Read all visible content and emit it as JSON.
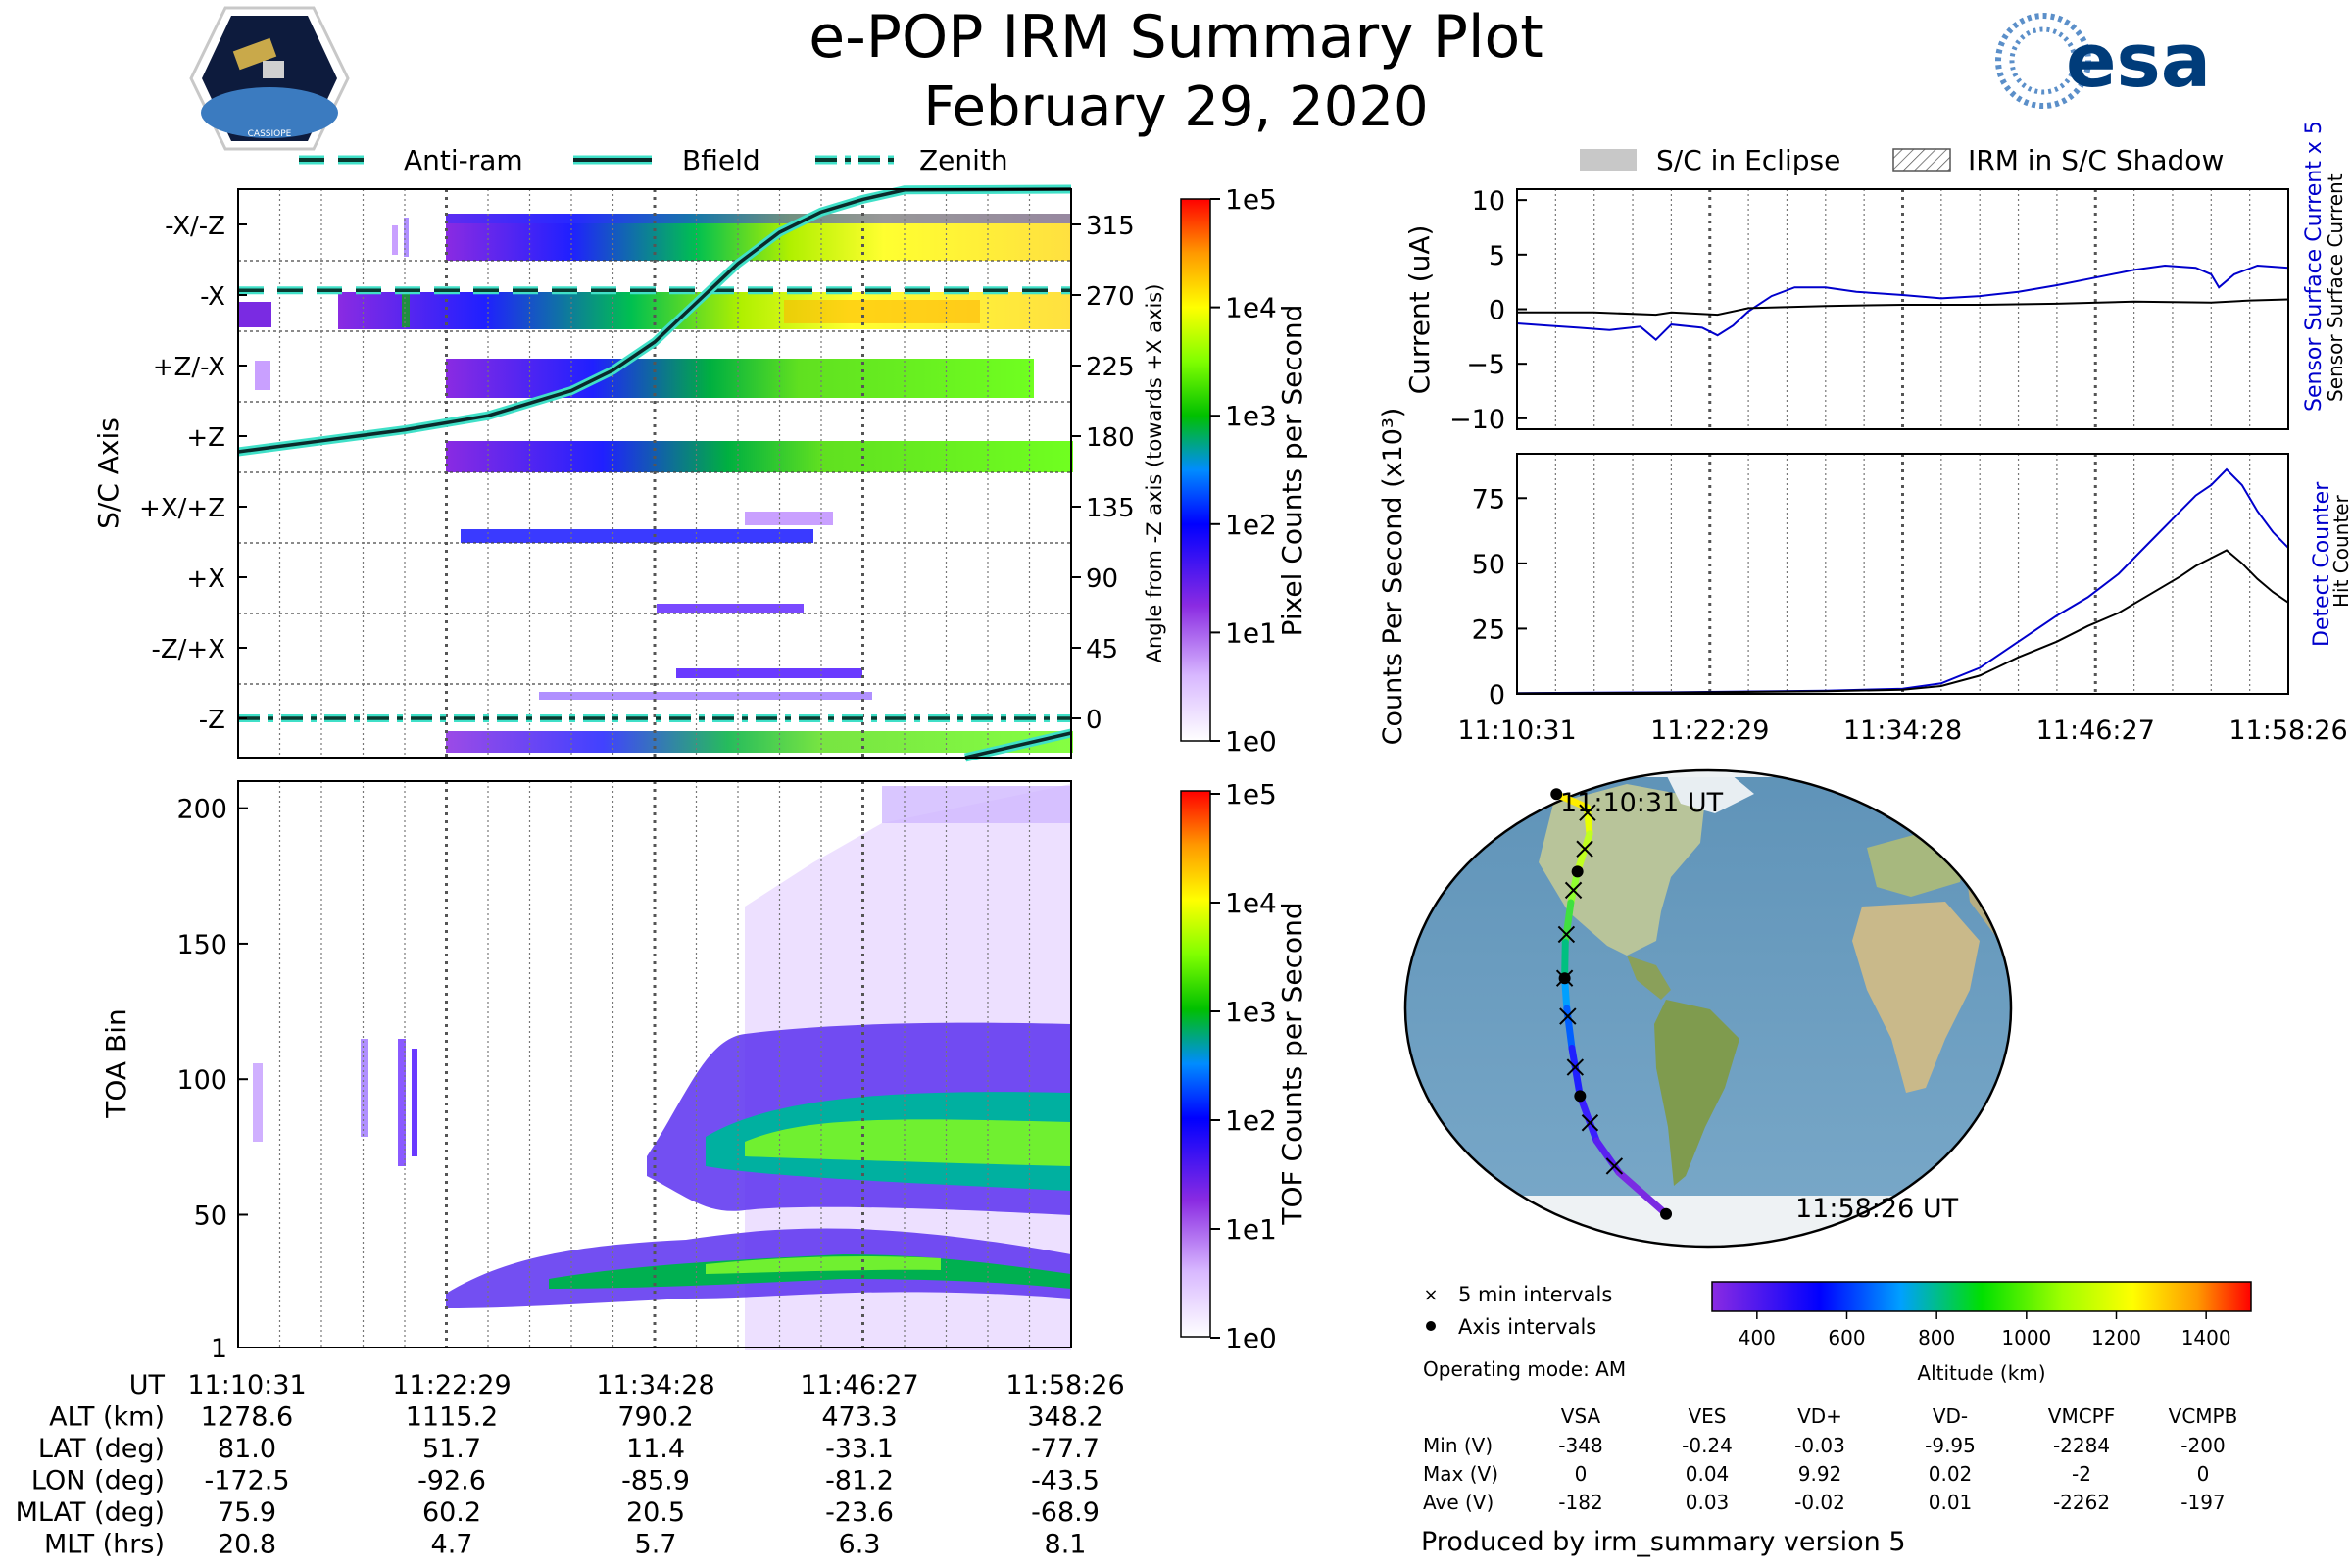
{
  "header": {
    "title": "e-POP IRM Summary Plot",
    "date": "February 29, 2020",
    "mission_logo_text": "CASSIOPE",
    "agency_logo_text": "esa"
  },
  "colors": {
    "bfield": "#0a2a2a",
    "bfield_outline": "#40e0c8",
    "antiram": "#0a3a30",
    "current_sensor": "#0000cc",
    "current_surface": "#000000",
    "counts_detect": "#0000cc",
    "counts_hit": "#000000"
  },
  "legend_top": {
    "antiram": "Anti-ram",
    "bfield": "Bfield",
    "zenith": "Zenith"
  },
  "legend_right": {
    "eclipse": "S/C in Eclipse",
    "shadow": "IRM in S/C Shadow"
  },
  "time_ticks": [
    "11:10:31",
    "11:22:29",
    "11:34:28",
    "11:46:27",
    "11:58:26"
  ],
  "chart_data": [
    {
      "type": "heatmap",
      "id": "sc_axis_spectrogram",
      "ylabel": "S/C Axis",
      "y_categories": [
        "-X/-Z",
        "-X",
        "+Z/-X",
        "+Z",
        "+X/+Z",
        "+X",
        "-Z/+X",
        "-Z"
      ],
      "right_ylabel": "Angle from -Z axis (towards +X axis)",
      "right_ticks": [
        "315",
        "270",
        "225",
        "180",
        "135",
        "90",
        "45",
        "0"
      ],
      "colorbar_label": "Pixel Counts per Second",
      "colorbar_ticks": [
        "1e5",
        "1e4",
        "1e3",
        "1e2",
        "1e1",
        "1e0"
      ],
      "bfield_angle_deg": [
        {
          "t": 0.0,
          "v": 170
        },
        {
          "t": 0.1,
          "v": 177
        },
        {
          "t": 0.2,
          "v": 184
        },
        {
          "t": 0.3,
          "v": 193
        },
        {
          "t": 0.4,
          "v": 209
        },
        {
          "t": 0.45,
          "v": 222
        },
        {
          "t": 0.5,
          "v": 240
        },
        {
          "t": 0.55,
          "v": 265
        },
        {
          "t": 0.6,
          "v": 290
        },
        {
          "t": 0.65,
          "v": 310
        },
        {
          "t": 0.7,
          "v": 323
        },
        {
          "t": 0.75,
          "v": 331
        },
        {
          "t": 0.8,
          "v": 337
        },
        {
          "t": 1.0,
          "v": 348
        }
      ],
      "antiram_angle_deg": 273,
      "zenith_angle_deg": 0
    },
    {
      "type": "heatmap",
      "id": "toa_spectrogram",
      "ylabel": "TOA Bin",
      "y_ticks": [
        "200",
        "150",
        "100",
        "50",
        "1"
      ],
      "ylim": [
        1,
        210
      ],
      "colorbar_label": "TOF Counts per Second",
      "colorbar_ticks": [
        "1e5",
        "1e4",
        "1e3",
        "1e2",
        "1e1",
        "1e0"
      ]
    },
    {
      "type": "line",
      "id": "current",
      "ylabel": "Current (uA)",
      "ylim": [
        -11,
        11
      ],
      "y_ticks": [
        "10",
        "5",
        "0",
        "−5",
        "−10"
      ],
      "right_labels": [
        "Sensor Surface Current x 5",
        "Sensor Surface Current"
      ],
      "series": [
        {
          "name": "Sensor Surface Current x 5",
          "points": [
            [
              0.0,
              -1.3
            ],
            [
              0.04,
              -1.5
            ],
            [
              0.08,
              -1.7
            ],
            [
              0.12,
              -1.9
            ],
            [
              0.16,
              -1.6
            ],
            [
              0.18,
              -2.8
            ],
            [
              0.2,
              -1.4
            ],
            [
              0.24,
              -1.7
            ],
            [
              0.26,
              -2.4
            ],
            [
              0.28,
              -1.5
            ],
            [
              0.3,
              -0.2
            ],
            [
              0.33,
              1.2
            ],
            [
              0.36,
              2.0
            ],
            [
              0.4,
              2.0
            ],
            [
              0.44,
              1.6
            ],
            [
              0.5,
              1.3
            ],
            [
              0.55,
              1.0
            ],
            [
              0.6,
              1.2
            ],
            [
              0.65,
              1.6
            ],
            [
              0.7,
              2.2
            ],
            [
              0.75,
              2.9
            ],
            [
              0.8,
              3.6
            ],
            [
              0.84,
              4.0
            ],
            [
              0.88,
              3.8
            ],
            [
              0.9,
              3.2
            ],
            [
              0.91,
              2.0
            ],
            [
              0.93,
              3.2
            ],
            [
              0.96,
              4.0
            ],
            [
              1.0,
              3.8
            ]
          ]
        },
        {
          "name": "Sensor Surface Current",
          "points": [
            [
              0.0,
              -0.3
            ],
            [
              0.1,
              -0.3
            ],
            [
              0.18,
              -0.5
            ],
            [
              0.2,
              -0.3
            ],
            [
              0.26,
              -0.5
            ],
            [
              0.3,
              0.1
            ],
            [
              0.4,
              0.3
            ],
            [
              0.5,
              0.4
            ],
            [
              0.6,
              0.4
            ],
            [
              0.7,
              0.5
            ],
            [
              0.8,
              0.7
            ],
            [
              0.9,
              0.6
            ],
            [
              0.95,
              0.8
            ],
            [
              1.0,
              0.9
            ]
          ]
        }
      ]
    },
    {
      "type": "line",
      "id": "counts",
      "ylabel": "Counts Per Second (x10³)",
      "ylim": [
        0,
        92
      ],
      "y_ticks": [
        "75",
        "50",
        "25",
        "0"
      ],
      "right_labels": [
        "Detect Counter",
        "Hit Counter"
      ],
      "series": [
        {
          "name": "Detect Counter",
          "points": [
            [
              0.0,
              0.3
            ],
            [
              0.2,
              0.6
            ],
            [
              0.4,
              1.2
            ],
            [
              0.5,
              2.0
            ],
            [
              0.55,
              4
            ],
            [
              0.6,
              10
            ],
            [
              0.65,
              20
            ],
            [
              0.7,
              30
            ],
            [
              0.74,
              37
            ],
            [
              0.78,
              46
            ],
            [
              0.82,
              58
            ],
            [
              0.86,
              70
            ],
            [
              0.88,
              76
            ],
            [
              0.9,
              80
            ],
            [
              0.92,
              86
            ],
            [
              0.94,
              80
            ],
            [
              0.96,
              70
            ],
            [
              0.98,
              62
            ],
            [
              1.0,
              56
            ]
          ]
        },
        {
          "name": "Hit Counter",
          "points": [
            [
              0.0,
              0.2
            ],
            [
              0.2,
              0.5
            ],
            [
              0.4,
              1.0
            ],
            [
              0.5,
              1.6
            ],
            [
              0.55,
              3
            ],
            [
              0.6,
              7
            ],
            [
              0.65,
              14
            ],
            [
              0.7,
              20
            ],
            [
              0.74,
              26
            ],
            [
              0.78,
              31
            ],
            [
              0.82,
              38
            ],
            [
              0.86,
              45
            ],
            [
              0.88,
              49
            ],
            [
              0.9,
              52
            ],
            [
              0.92,
              55
            ],
            [
              0.94,
              50
            ],
            [
              0.96,
              44
            ],
            [
              0.98,
              39
            ],
            [
              1.0,
              35
            ]
          ]
        }
      ]
    },
    {
      "type": "scatter",
      "id": "ground_track",
      "start_label": "11:10:31 UT",
      "end_label": "11:58:26 UT",
      "track_lonlat": [
        [
          -172.5,
          81.0
        ],
        [
          -120,
          76
        ],
        [
          -98,
          66
        ],
        [
          -92.6,
          51.7
        ],
        [
          -90,
          40
        ],
        [
          -88,
          25
        ],
        [
          -85.9,
          11.4
        ],
        [
          -84,
          0
        ],
        [
          -82,
          -15
        ],
        [
          -81.2,
          -33.1
        ],
        [
          -78,
          -50
        ],
        [
          -70,
          -62
        ],
        [
          -43.5,
          -77.7
        ]
      ],
      "altitude_colorbar": {
        "label": "Altitude (km)",
        "ticks": [
          "400",
          "600",
          "800",
          "1000",
          "1200",
          "1400"
        ],
        "min": 300,
        "max": 1500
      },
      "legend": {
        "five_min": "5 min intervals",
        "axis": "Axis intervals"
      },
      "operating_mode": "Operating mode: AM"
    }
  ],
  "ephemeris": {
    "labels": [
      "UT",
      "ALT (km)",
      "LAT (deg)",
      "LON (deg)",
      "MLAT (deg)",
      "MLT (hrs)"
    ],
    "columns": [
      [
        "11:10:31",
        "1278.6",
        "81.0",
        "-172.5",
        "75.9",
        "20.8"
      ],
      [
        "11:22:29",
        "1115.2",
        "51.7",
        "-92.6",
        "60.2",
        "4.7"
      ],
      [
        "11:34:28",
        "790.2",
        "11.4",
        "-85.9",
        "20.5",
        "5.7"
      ],
      [
        "11:46:27",
        "473.3",
        "-33.1",
        "-81.2",
        "-23.6",
        "6.3"
      ],
      [
        "11:58:26",
        "348.2",
        "-77.7",
        "-43.5",
        "-68.9",
        "8.1"
      ]
    ]
  },
  "voltages": {
    "headers": [
      "VSA",
      "VES",
      "VD+",
      "VD-",
      "VMCPF",
      "VCMPB"
    ],
    "rows": [
      {
        "label": "Min (V)",
        "values": [
          "-348",
          "-0.24",
          "-0.03",
          "-9.95",
          "-2284",
          "-200"
        ]
      },
      {
        "label": "Max (V)",
        "values": [
          "0",
          "0.04",
          "9.92",
          "0.02",
          "-2",
          "0"
        ]
      },
      {
        "label": "Ave (V)",
        "values": [
          "-182",
          "0.03",
          "-0.02",
          "0.01",
          "-2262",
          "-197"
        ]
      }
    ]
  },
  "footer": "Produced by irm_summary version 5"
}
